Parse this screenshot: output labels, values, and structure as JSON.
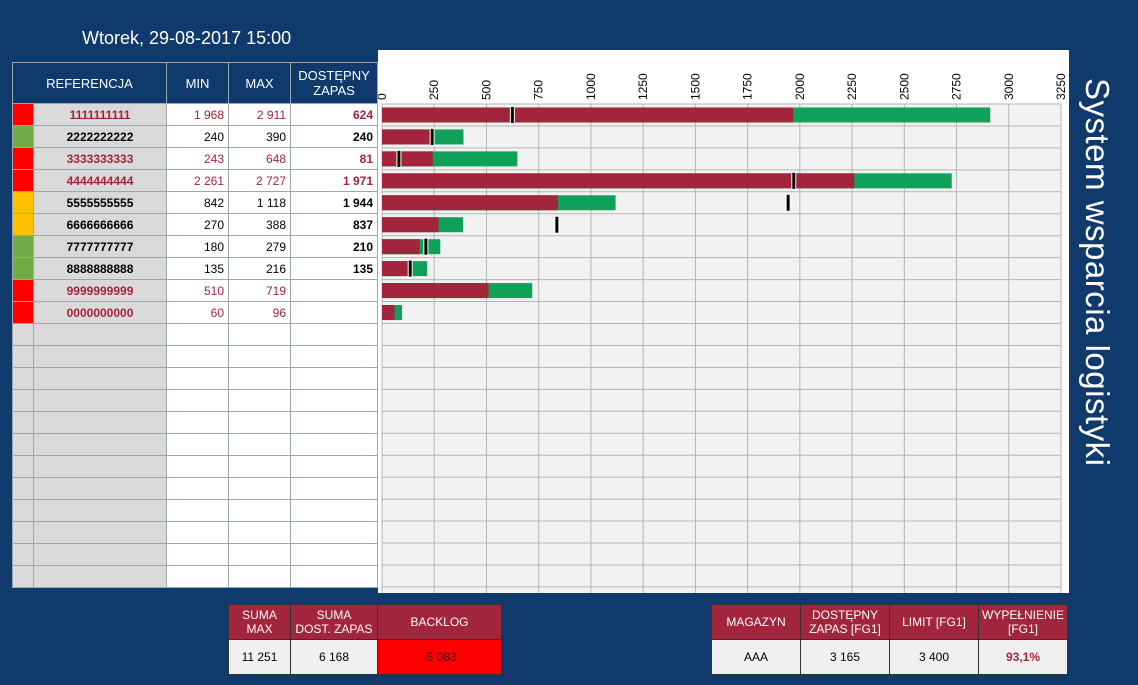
{
  "header": {
    "datetime": "Wtorek, 29-08-2017 15:00"
  },
  "side_title": "System wsparcia logistyki",
  "table": {
    "headers": {
      "ref": "REFERENCJA",
      "min": "MIN",
      "max": "MAX",
      "avail_line1": "DOSTĘPNY",
      "avail_line2": "ZAPAS"
    },
    "rows": [
      {
        "status": "#ff0000",
        "ref": "1111111111",
        "min": "1 968",
        "max": "2 911",
        "avail": "624"
      },
      {
        "status": "#70ad47",
        "ref": "2222222222",
        "min": "240",
        "max": "390",
        "avail": "240"
      },
      {
        "status": "#ff0000",
        "ref": "3333333333",
        "min": "243",
        "max": "648",
        "avail": "81"
      },
      {
        "status": "#ff0000",
        "ref": "4444444444",
        "min": "2 261",
        "max": "2 727",
        "avail": "1 971"
      },
      {
        "status": "#ffc000",
        "ref": "5555555555",
        "min": "842",
        "max": "1 118",
        "avail": "1 944"
      },
      {
        "status": "#ffc000",
        "ref": "6666666666",
        "min": "270",
        "max": "388",
        "avail": "837"
      },
      {
        "status": "#70ad47",
        "ref": "7777777777",
        "min": "180",
        "max": "279",
        "avail": "210"
      },
      {
        "status": "#70ad47",
        "ref": "8888888888",
        "min": "135",
        "max": "216",
        "avail": "135"
      },
      {
        "status": "#ff0000",
        "ref": "9999999999",
        "min": "510",
        "max": "719",
        "avail": ""
      },
      {
        "status": "#ff0000",
        "ref": "0000000000",
        "min": "60",
        "max": "96",
        "avail": ""
      }
    ]
  },
  "chart_data": {
    "type": "bar",
    "orientation": "horizontal",
    "categories": [
      "1111111111",
      "2222222222",
      "3333333333",
      "4444444444",
      "5555555555",
      "6666666666",
      "7777777777",
      "8888888888",
      "9999999999",
      "0000000000"
    ],
    "series": [
      {
        "values": [
          1968,
          240,
          243,
          2261,
          842,
          270,
          180,
          135,
          510,
          60
        ],
        "color": "#a3253b"
      },
      {
        "values": [
          2911,
          390,
          648,
          2727,
          1118,
          388,
          279,
          216,
          719,
          96
        ],
        "color": "#0fa05a"
      },
      {
        "values": [
          624,
          240,
          81,
          1971,
          1944,
          837,
          210,
          135,
          null,
          null
        ],
        "color": "#000000"
      }
    ],
    "xlim": [
      0,
      3250
    ],
    "xticks": [
      "0",
      "250",
      "500",
      "750",
      "1000",
      "1250",
      "1500",
      "1750",
      "2000",
      "2250",
      "2500",
      "2750",
      "3000",
      "3250"
    ],
    "grid": true
  },
  "summary": {
    "headers": {
      "max": "SUMA\nMAX",
      "avail": "SUMA\nDOST. ZAPAS",
      "backlog": "BACKLOG"
    },
    "values": {
      "max": "11 251",
      "avail": "6 168",
      "backlog": "-5 083"
    },
    "backlog_color": "#ff0000"
  },
  "warehouse": {
    "headers": {
      "mag": "MAGAZYN",
      "avail": "DOSTĘPNY\nZAPAS [FG1]",
      "limit": "LIMIT [FG1]",
      "fill": "WYPEŁNIENIE\n[FG1]"
    },
    "values": {
      "mag": "AAA",
      "avail": "3 165",
      "limit": "3 400",
      "fill": "93,1%"
    }
  }
}
